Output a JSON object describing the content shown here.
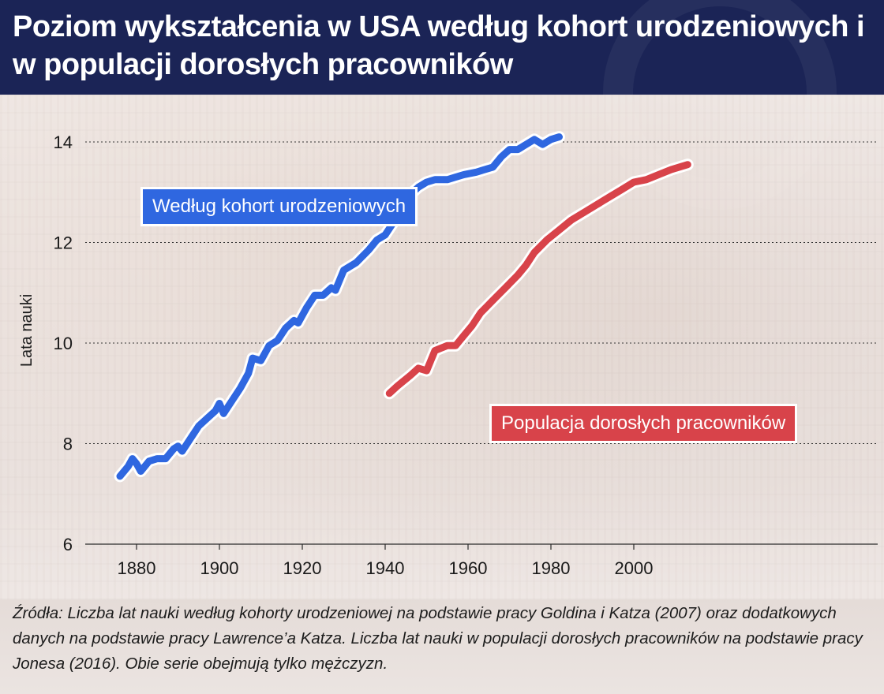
{
  "title": "Poziom wykształcenia w USA według kohort urodzeniowych i w populacji dorosłych pracowników",
  "source": "Źródła: Liczba lat nauki według kohorty urodzeniowej na podstawie pracy Goldina i Katza (2007) oraz dodatkowych danych na podstawie pracy Lawrence’a Katza. Liczba lat nauki w populacji dorosłych pracowników na podstawie pracy Jonesa (2016). Obie serie obejmują tylko mężczyzn.",
  "colors": {
    "header_bg": "#1b2456",
    "cohort_series": "#2f67e0",
    "workers_series": "#d8434a"
  },
  "chart_data": {
    "type": "line",
    "title": "Poziom wykształcenia w USA według kohort urodzeniowych i w populacji dorosłych pracowników",
    "xlabel": "",
    "ylabel": "Lata nauki",
    "xlim": [
      1870,
      2016
    ],
    "ylim": [
      6,
      14.2
    ],
    "xticks": [
      1880,
      1900,
      1920,
      1940,
      1960,
      1980,
      2000
    ],
    "yticks": [
      6,
      8,
      10,
      12,
      14
    ],
    "grid": "horizontal dotted",
    "series": [
      {
        "name": "Według kohort urodzeniowych",
        "color": "#2f67e0",
        "points": [
          [
            1876,
            7.35
          ],
          [
            1878,
            7.55
          ],
          [
            1879,
            7.7
          ],
          [
            1880,
            7.6
          ],
          [
            1881,
            7.45
          ],
          [
            1883,
            7.65
          ],
          [
            1885,
            7.7
          ],
          [
            1887,
            7.7
          ],
          [
            1889,
            7.9
          ],
          [
            1890,
            7.95
          ],
          [
            1891,
            7.85
          ],
          [
            1893,
            8.1
          ],
          [
            1895,
            8.35
          ],
          [
            1897,
            8.5
          ],
          [
            1899,
            8.65
          ],
          [
            1900,
            8.8
          ],
          [
            1901,
            8.6
          ],
          [
            1903,
            8.85
          ],
          [
            1905,
            9.1
          ],
          [
            1907,
            9.4
          ],
          [
            1908,
            9.7
          ],
          [
            1910,
            9.65
          ],
          [
            1912,
            9.95
          ],
          [
            1914,
            10.05
          ],
          [
            1916,
            10.3
          ],
          [
            1918,
            10.45
          ],
          [
            1919,
            10.4
          ],
          [
            1921,
            10.7
          ],
          [
            1923,
            10.95
          ],
          [
            1925,
            10.95
          ],
          [
            1927,
            11.1
          ],
          [
            1928,
            11.05
          ],
          [
            1930,
            11.45
          ],
          [
            1933,
            11.6
          ],
          [
            1936,
            11.85
          ],
          [
            1938,
            12.05
          ],
          [
            1940,
            12.15
          ],
          [
            1942,
            12.4
          ],
          [
            1944,
            12.55
          ],
          [
            1946,
            12.95
          ],
          [
            1948,
            13.1
          ],
          [
            1950,
            13.2
          ],
          [
            1952,
            13.25
          ],
          [
            1955,
            13.25
          ],
          [
            1957,
            13.3
          ],
          [
            1959,
            13.35
          ],
          [
            1962,
            13.4
          ],
          [
            1964,
            13.45
          ],
          [
            1966,
            13.5
          ],
          [
            1968,
            13.7
          ],
          [
            1970,
            13.85
          ],
          [
            1972,
            13.85
          ],
          [
            1974,
            13.95
          ],
          [
            1976,
            14.05
          ],
          [
            1978,
            13.95
          ],
          [
            1980,
            14.05
          ],
          [
            1982,
            14.1
          ]
        ]
      },
      {
        "name": "Populacja dorosłych pracowników",
        "color": "#d8434a",
        "points": [
          [
            1941,
            9.0
          ],
          [
            1943,
            9.15
          ],
          [
            1946,
            9.35
          ],
          [
            1948,
            9.5
          ],
          [
            1950,
            9.45
          ],
          [
            1952,
            9.85
          ],
          [
            1955,
            9.95
          ],
          [
            1957,
            9.95
          ],
          [
            1959,
            10.15
          ],
          [
            1961,
            10.35
          ],
          [
            1963,
            10.6
          ],
          [
            1966,
            10.85
          ],
          [
            1969,
            11.1
          ],
          [
            1972,
            11.35
          ],
          [
            1974,
            11.55
          ],
          [
            1976,
            11.8
          ],
          [
            1979,
            12.05
          ],
          [
            1982,
            12.25
          ],
          [
            1985,
            12.45
          ],
          [
            1988,
            12.6
          ],
          [
            1991,
            12.75
          ],
          [
            1994,
            12.9
          ],
          [
            1997,
            13.05
          ],
          [
            2000,
            13.2
          ],
          [
            2003,
            13.25
          ],
          [
            2006,
            13.35
          ],
          [
            2009,
            13.45
          ],
          [
            2013,
            13.55
          ]
        ]
      }
    ]
  }
}
